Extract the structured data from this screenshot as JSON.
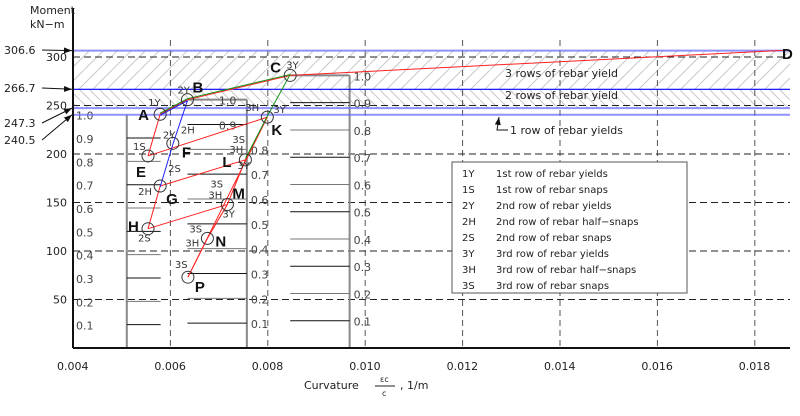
{
  "chart_data": {
    "type": "line",
    "title": "",
    "ylabel_line1": "Moment",
    "ylabel_line2": "kN−m",
    "xlabel_prefix": "Curvature",
    "xlabel_frac_num": "εc",
    "xlabel_frac_den": "c",
    "xlabel_suffix": ", 1/m",
    "xlim": [
      0.004,
      0.0186
    ],
    "ylim": [
      0,
      320
    ],
    "grid": true,
    "x_ticks": [
      0.004,
      0.006,
      0.008,
      0.01,
      0.012,
      0.014,
      0.016,
      0.018
    ],
    "x_tick_labels": [
      "0.004",
      "0.006",
      "0.008",
      "0.010",
      "0.012",
      "0.014",
      "0.016",
      "0.018"
    ],
    "y_ticks": [
      50,
      100,
      150,
      200,
      250,
      300
    ],
    "y_tick_labels": [
      "50",
      "100",
      "150",
      "200",
      "250",
      "300"
    ],
    "reference_lines": [
      {
        "value": 306.6,
        "label": "306.6",
        "color": "#6b6bff"
      },
      {
        "value": 266.7,
        "label": "266.7",
        "color": "#0000ff"
      },
      {
        "value": 247.3,
        "label": "247.3",
        "color": "#6b6bff"
      },
      {
        "value": 240.5,
        "label": "240.5",
        "color": "#6b6bff"
      }
    ],
    "bands": [
      {
        "label": "3 rows of rebar yield",
        "from": 266.7,
        "to": 306.6
      },
      {
        "label": "2 rows of rebar yield",
        "from": 247.3,
        "to": 266.7
      },
      {
        "label": "1 row of rebar yields",
        "from": 240.5,
        "to": 247.3
      }
    ],
    "points": [
      {
        "id": "A",
        "x": 0.00579,
        "y": 241,
        "codes": [
          "1Y"
        ]
      },
      {
        "id": "B",
        "x": 0.00635,
        "y": 256,
        "codes": [
          "2Y"
        ]
      },
      {
        "id": "C",
        "x": 0.00846,
        "y": 281,
        "codes": [
          "3Y"
        ]
      },
      {
        "id": "D",
        "x": 0.01864,
        "y": 307,
        "codes": []
      },
      {
        "id": "E",
        "x": 0.00554,
        "y": 198,
        "codes": [
          "1S"
        ]
      },
      {
        "id": "F",
        "x": 0.00605,
        "y": 211,
        "codes": [
          "2Y",
          "2H"
        ]
      },
      {
        "id": "G",
        "x": 0.00579,
        "y": 167,
        "codes": [
          "2H",
          "2S"
        ]
      },
      {
        "id": "H",
        "x": 0.00554,
        "y": 123,
        "codes": [
          "2S"
        ]
      },
      {
        "id": "K",
        "x": 0.00799,
        "y": 238,
        "codes": [
          "3Y",
          "3H"
        ]
      },
      {
        "id": "L",
        "x": 0.00754,
        "y": 194,
        "codes": [
          "3S",
          "3H",
          "3Y"
        ]
      },
      {
        "id": "M",
        "x": 0.00717,
        "y": 148,
        "codes": [
          "3S",
          "3H",
          "3Y"
        ]
      },
      {
        "id": "N",
        "x": 0.00676,
        "y": 113,
        "codes": [
          "3S",
          "3H"
        ]
      },
      {
        "id": "P",
        "x": 0.00636,
        "y": 73,
        "codes": [
          "3S"
        ]
      }
    ],
    "series": [
      {
        "name": "red",
        "color": "#ff2020",
        "segments": [
          [
            "A",
            "B"
          ],
          [
            "B",
            "C"
          ],
          [
            "C",
            "D"
          ],
          [
            "A",
            "E"
          ],
          [
            "E",
            "K"
          ],
          [
            "H",
            "G"
          ],
          [
            "G",
            "L"
          ],
          [
            "H",
            "M"
          ],
          [
            "K",
            "L"
          ],
          [
            "L",
            "M"
          ],
          [
            "M",
            "N"
          ],
          [
            "N",
            "P"
          ],
          [
            "K",
            "P"
          ]
        ]
      },
      {
        "name": "green",
        "color": "#109010",
        "segments": [
          [
            "A",
            "B"
          ],
          [
            "B",
            "C"
          ],
          [
            "C",
            "K"
          ],
          [
            "K",
            "L"
          ]
        ]
      },
      {
        "name": "blue",
        "color": "#2020ff",
        "segments": [
          [
            "A",
            "B"
          ],
          [
            "B",
            "F"
          ],
          [
            "F",
            "G"
          ]
        ]
      }
    ],
    "scales": [
      {
        "ref_moment": 240.5,
        "x_from": 0.00455,
        "x_to": 0.0058,
        "label_side": "left",
        "ticks": [
          "1.0",
          "0.9",
          "0.8",
          "0.7",
          "0.6",
          "0.5",
          "0.4",
          "0.3",
          "0.2",
          "0.1"
        ]
      },
      {
        "ref_moment": 256,
        "x_from": 0.00635,
        "x_to": 0.00757,
        "label_side": "right",
        "ticks": [
          "1.0",
          "0.9",
          "0.8",
          "0.7",
          "0.6",
          "0.5",
          "0.4",
          "0.3",
          "0.2",
          "0.1"
        ]
      },
      {
        "ref_moment": 281,
        "x_from": 0.00846,
        "x_to": 0.00968,
        "label_side": "right",
        "ticks": [
          "1.0",
          "0.9",
          "0.8",
          "0.7",
          "0.6",
          "0.5",
          "0.4",
          "0.3",
          "0.2",
          "0.1"
        ]
      }
    ],
    "legend": {
      "placement": "center-right",
      "entries": [
        {
          "code": "1Y",
          "text": "1st row of rebar yields"
        },
        {
          "code": "1S",
          "text": "1st row of rebar snaps"
        },
        {
          "code": "2Y",
          "text": "2nd row of rebar yields"
        },
        {
          "code": "2H",
          "text": "2nd row of rebar half−snaps"
        },
        {
          "code": "2S",
          "text": "2nd row of rebar snaps"
        },
        {
          "code": "3Y",
          "text": "3rd row of rebar yields"
        },
        {
          "code": "3H",
          "text": "3rd row of rebar half−snaps"
        },
        {
          "code": "3S",
          "text": "3rd row of rebar snaps"
        }
      ]
    }
  }
}
